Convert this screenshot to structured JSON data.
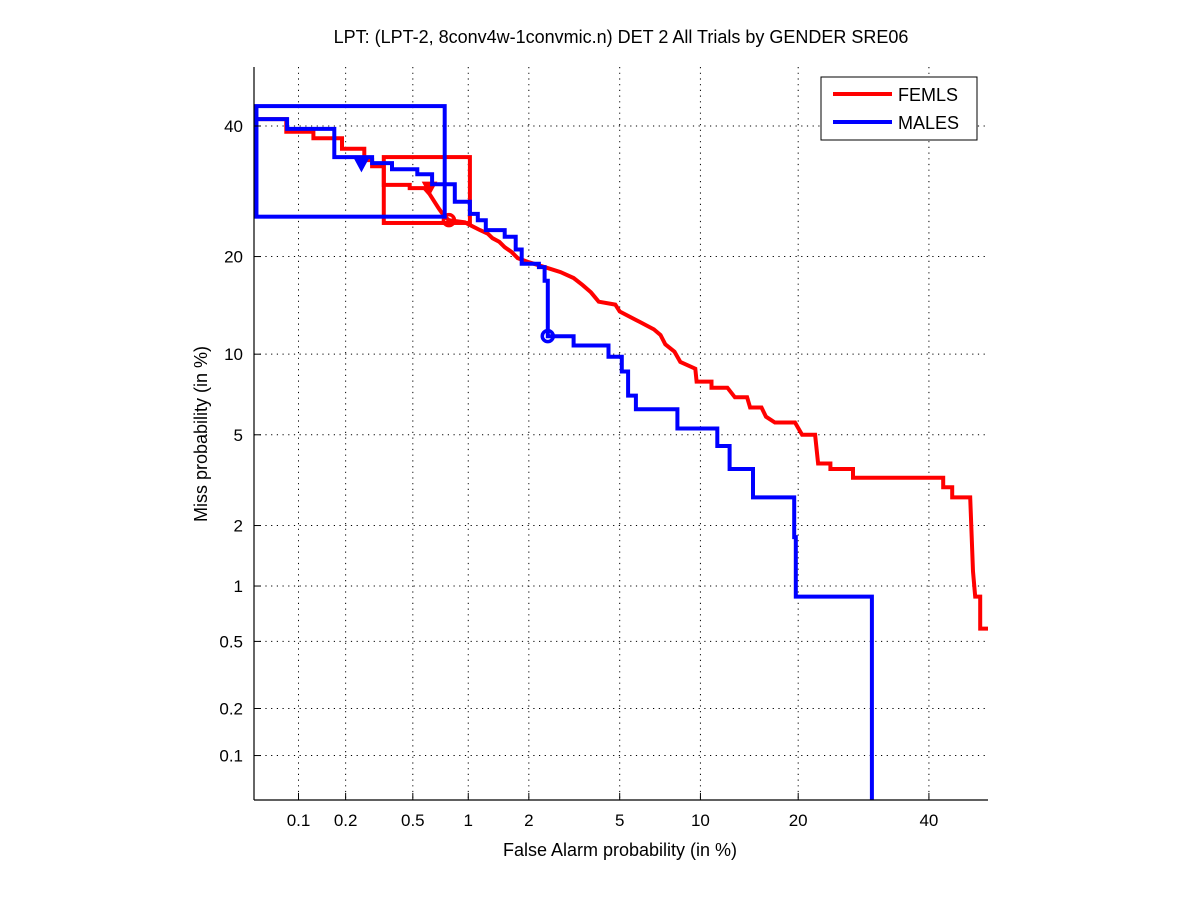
{
  "chart_data": {
    "type": "line",
    "subtype": "DET (probit-scaled axes)",
    "title": "LPT: (LPT-2, 8conv4w-1convmic.n) DET 2 All Trials by GENDER SRE06",
    "xlabel": "False Alarm probability (in %)",
    "ylabel": "Miss probability (in %)",
    "xscale": "probit",
    "yscale": "probit",
    "xlim": [
      0.05,
      50.5
    ],
    "ylim": [
      0.05,
      50.5
    ],
    "grid": true,
    "x_ticks": [
      0.1,
      0.2,
      0.5,
      1,
      2,
      5,
      10,
      20,
      40
    ],
    "x_tick_labels": [
      "0.1",
      "0.2",
      "0.5",
      "1",
      "2",
      "5",
      "10",
      "20",
      "40"
    ],
    "y_ticks": [
      0.1,
      0.2,
      0.5,
      1,
      2,
      5,
      10,
      20,
      40
    ],
    "y_tick_labels": [
      "0.1",
      "0.2",
      "0.5",
      "1",
      "2",
      "5",
      "10",
      "20",
      "40"
    ],
    "legend": {
      "placement": "top-right",
      "entries": [
        "FEMLS",
        "MALES"
      ]
    },
    "series": [
      {
        "name": "FEMLS",
        "color": "#ff0000",
        "x": [
          0.051,
          0.083,
          0.083,
          0.125,
          0.125,
          0.19,
          0.19,
          0.26,
          0.26,
          0.29,
          0.29,
          0.34,
          0.34,
          0.48,
          0.48,
          0.58,
          0.62,
          0.66,
          0.7,
          0.75,
          0.79,
          0.96,
          1.04,
          1.15,
          1.26,
          1.33,
          1.44,
          1.53,
          1.65,
          1.77,
          2.0,
          2.5,
          2.8,
          3.2,
          3.5,
          3.8,
          4.1,
          4.8,
          5.0,
          6.0,
          6.8,
          7.2,
          7.5,
          8.1,
          8.5,
          9.6,
          9.7,
          10.9,
          10.9,
          12.3,
          13.0,
          14.2,
          14.5,
          15.7,
          16.2,
          17.2,
          19.6,
          20.5,
          22.2,
          22.6,
          24.3,
          24.3,
          27.6,
          27.6,
          42.5,
          42.5,
          44.1,
          44.1,
          47.3,
          47.8,
          48.2,
          49.1,
          49.1,
          50.5
        ],
        "y": [
          41.2,
          41.2,
          39.0,
          39.0,
          37.9,
          37.9,
          36.1,
          36.1,
          34.2,
          34.2,
          33.2,
          33.2,
          30.2,
          30.2,
          29.7,
          29.7,
          28.8,
          27.6,
          26.5,
          25.4,
          24.9,
          24.6,
          24.1,
          23.5,
          23.0,
          22.4,
          21.9,
          21.2,
          20.6,
          19.8,
          19.3,
          18.5,
          18.1,
          17.4,
          16.6,
          15.8,
          14.8,
          14.5,
          13.8,
          12.8,
          12.1,
          11.6,
          10.8,
          10.2,
          9.4,
          8.9,
          8.0,
          8.0,
          7.6,
          7.6,
          7.0,
          7.0,
          6.4,
          6.4,
          5.9,
          5.6,
          5.6,
          5.0,
          5.0,
          3.8,
          3.8,
          3.6,
          3.6,
          3.3,
          3.3,
          3.0,
          3.0,
          2.7,
          2.7,
          1.19,
          0.88,
          0.88,
          0.59,
          0.59
        ],
        "boxes": [
          {
            "x": [
              0.34,
              1.02
            ],
            "y": [
              24.5,
              34.7
            ]
          }
        ],
        "markers": [
          {
            "shape": "triangle-down",
            "x": 0.62,
            "y": 29.7
          },
          {
            "shape": "circle",
            "x": 0.79,
            "y": 24.9
          }
        ]
      },
      {
        "name": "MALES",
        "color": "#0000ff",
        "x": [
          0.051,
          0.084,
          0.084,
          0.17,
          0.17,
          0.29,
          0.29,
          0.38,
          0.38,
          0.53,
          0.53,
          0.64,
          0.64,
          0.85,
          0.85,
          1.02,
          1.02,
          1.12,
          1.12,
          1.23,
          1.23,
          1.53,
          1.53,
          1.73,
          1.73,
          1.85,
          1.85,
          2.23,
          2.23,
          2.37,
          2.37,
          2.45,
          2.45,
          3.2,
          3.2,
          4.5,
          4.5,
          5.1,
          5.1,
          5.4,
          5.4,
          5.8,
          5.8,
          8.3,
          8.3,
          11.4,
          11.4,
          12.5,
          12.5,
          14.8,
          14.8,
          19.5,
          19.5,
          19.7,
          19.7,
          30.5,
          30.5
        ],
        "y": [
          41.2,
          41.2,
          39.5,
          39.5,
          34.7,
          34.7,
          33.7,
          33.7,
          32.7,
          32.7,
          31.9,
          31.9,
          30.3,
          30.3,
          27.6,
          27.6,
          25.8,
          25.8,
          24.9,
          24.9,
          23.5,
          23.5,
          22.6,
          22.6,
          20.9,
          20.9,
          19.1,
          19.1,
          18.7,
          18.7,
          17.1,
          17.1,
          11.5,
          11.5,
          10.7,
          10.7,
          9.8,
          9.8,
          8.7,
          8.7,
          7.1,
          7.1,
          6.3,
          6.3,
          5.3,
          5.3,
          4.5,
          4.5,
          3.6,
          3.6,
          2.7,
          2.7,
          1.76,
          1.76,
          0.88,
          0.88,
          0.05
        ],
        "boxes": [
          {
            "x": [
              0.052,
              0.75
            ],
            "y": [
              25.4,
              43.5
            ]
          }
        ],
        "markers": [
          {
            "shape": "triangle-down",
            "x": 0.25,
            "y": 33.5
          },
          {
            "shape": "circle",
            "x": 2.45,
            "y": 11.5
          }
        ]
      }
    ]
  }
}
